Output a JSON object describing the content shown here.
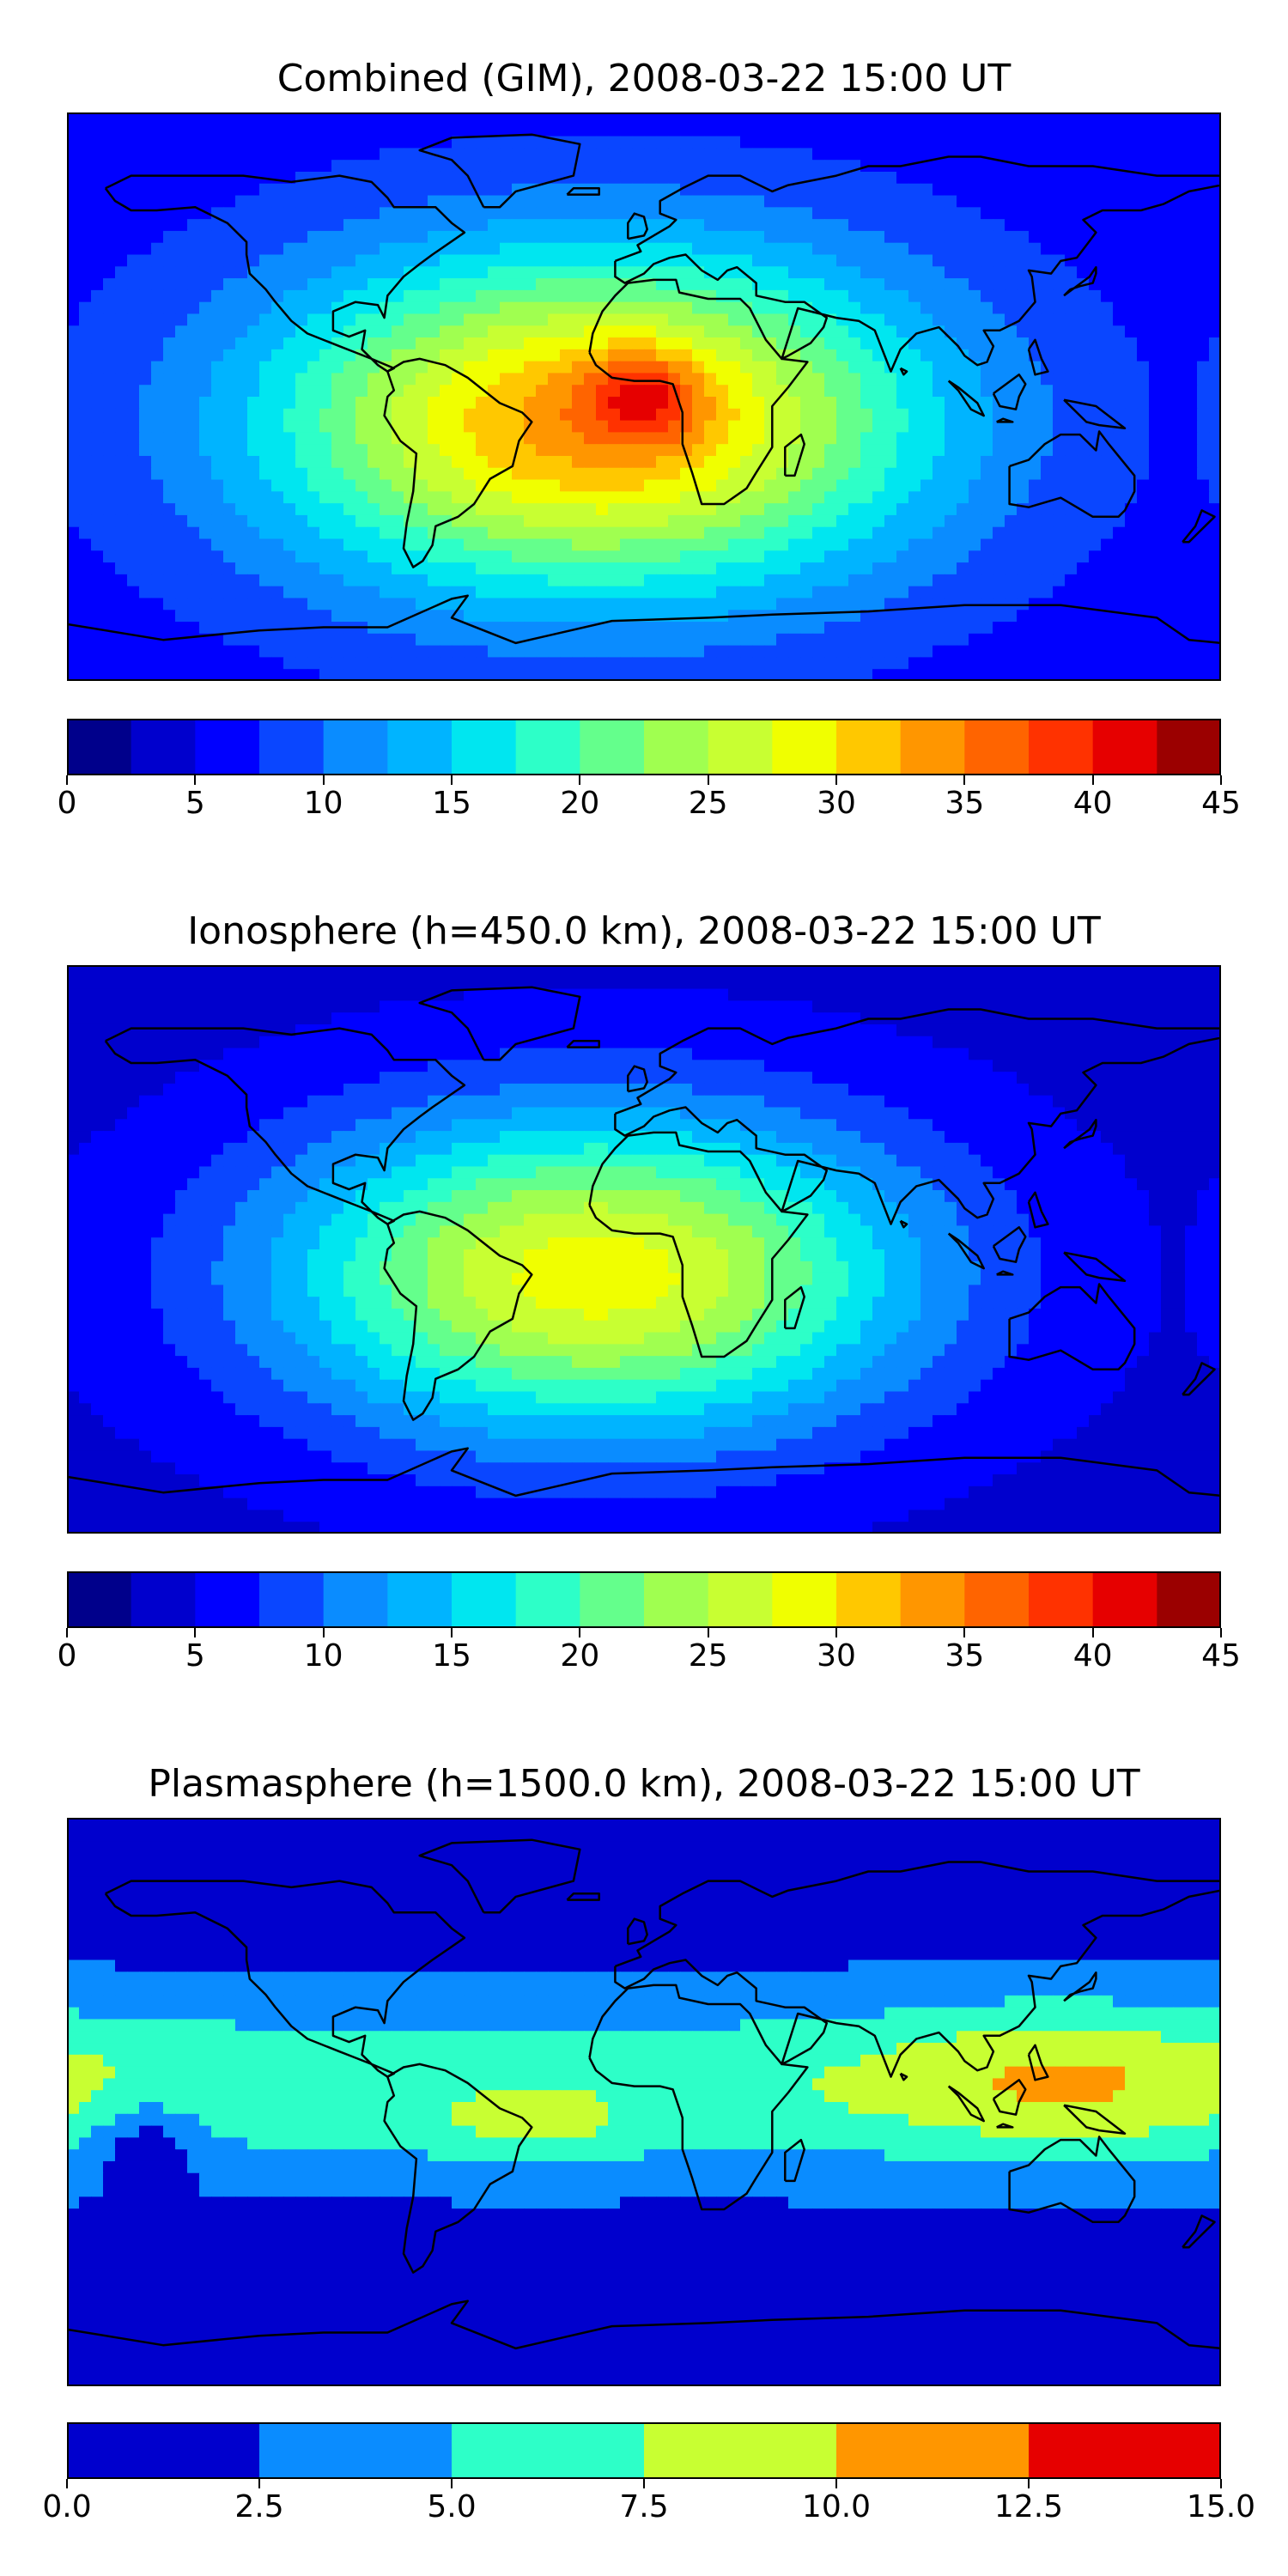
{
  "chart_data": [
    {
      "type": "heatmap",
      "map_type": "global filled-contour map",
      "title": "Combined (GIM), 2008-03-22 15:00 UT",
      "colorbar": {
        "min": 0,
        "max": 45,
        "step": 2.5,
        "ticks": [
          "0",
          "5",
          "10",
          "15",
          "20",
          "25",
          "30",
          "35",
          "40",
          "45"
        ],
        "colors": [
          "#00008b",
          "#0000cd",
          "#0000ff",
          "#0a46ff",
          "#0a8cff",
          "#00b4ff",
          "#00e6f0",
          "#2dffc8",
          "#64ff8c",
          "#a0ff50",
          "#c8ff32",
          "#f0ff00",
          "#ffc800",
          "#ff9600",
          "#ff6400",
          "#ff3200",
          "#e60000",
          "#9b0000"
        ]
      },
      "background_value": 6,
      "anomalies": [
        {
          "lon": -15,
          "lat": -8,
          "value": 28,
          "sx": 72,
          "sy": 38
        },
        {
          "lon": 0,
          "lat": 0,
          "value": 9,
          "sx": 13,
          "sy": 10
        }
      ]
    },
    {
      "type": "heatmap",
      "map_type": "global filled-contour map",
      "title": "Ionosphere  (h=450.0 km), 2008-03-22 15:00 UT",
      "colorbar": {
        "min": 0,
        "max": 45,
        "step": 2.5,
        "ticks": [
          "0",
          "5",
          "10",
          "15",
          "20",
          "25",
          "30",
          "35",
          "40",
          "45"
        ],
        "colors": [
          "#00008b",
          "#0000cd",
          "#0000ff",
          "#0a46ff",
          "#0a8cff",
          "#00b4ff",
          "#00e6f0",
          "#2dffc8",
          "#64ff8c",
          "#a0ff50",
          "#c8ff32",
          "#f0ff00",
          "#ffc800",
          "#ff9600",
          "#ff6400",
          "#ff3200",
          "#e60000",
          "#9b0000"
        ]
      },
      "background_value": 4,
      "anomalies": [
        {
          "lon": -15,
          "lat": -8,
          "value": 25,
          "sx": 70,
          "sy": 36
        }
      ]
    },
    {
      "type": "heatmap",
      "map_type": "global filled-contour map",
      "title": "Plasmasphere (h=1500.0 km), 2008-03-22 15:00 UT",
      "colorbar": {
        "min": 0.0,
        "max": 15.0,
        "step": 2.5,
        "ticks": [
          "0.0",
          "2.5",
          "5.0",
          "7.5",
          "10.0",
          "12.5",
          "15.0"
        ],
        "colors": [
          "#0000cd",
          "#0a8cff",
          "#2dffc8",
          "#c8ff32",
          "#ff9600",
          "#e60000"
        ]
      },
      "background_value": 1.5,
      "band": {
        "value_peak": 7.0,
        "lat_center": 5,
        "width": 28
      },
      "anomalies": [
        {
          "lon": 130,
          "lat": 8,
          "value": 3.5,
          "sx": 40,
          "sy": 18
        },
        {
          "lon": -35,
          "lat": -10,
          "value": 2.5,
          "sx": 22,
          "sy": 8
        },
        {
          "lon": -155,
          "lat": -12,
          "value": -4.0,
          "sx": 12,
          "sy": 10
        }
      ]
    }
  ]
}
